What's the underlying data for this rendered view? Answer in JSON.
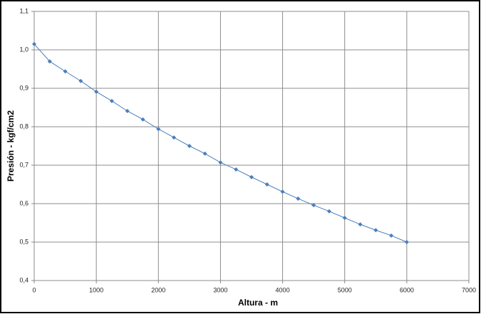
{
  "chart_data": {
    "type": "line",
    "x_label": "Altura - m",
    "y_label": "Presión - kgf/cm2",
    "x": [
      0,
      250,
      500,
      750,
      1000,
      1250,
      1500,
      1750,
      2000,
      2250,
      2500,
      2750,
      3000,
      3250,
      3500,
      3750,
      4000,
      4250,
      4500,
      4750,
      5000,
      5250,
      5500,
      5750,
      6000
    ],
    "series": [
      {
        "color": "#4a7ebb",
        "values": [
          1.015,
          0.97,
          0.944,
          0.919,
          0.891,
          0.867,
          0.841,
          0.819,
          0.794,
          0.772,
          0.75,
          0.73,
          0.707,
          0.689,
          0.669,
          0.65,
          0.631,
          0.613,
          0.596,
          0.58,
          0.563,
          0.546,
          0.531,
          0.517,
          0.5
        ]
      }
    ],
    "xlim": [
      0,
      7000
    ],
    "xticks": [
      0,
      1000,
      2000,
      3000,
      4000,
      5000,
      6000,
      7000
    ],
    "ylim": [
      0.4,
      1.1
    ],
    "yticks": [
      {
        "value": 0.4,
        "label": "0,4"
      },
      {
        "value": 0.5,
        "label": "0,5"
      },
      {
        "value": 0.6,
        "label": "0,6"
      },
      {
        "value": 0.7,
        "label": "0,7"
      },
      {
        "value": 0.8,
        "label": "0,8"
      },
      {
        "value": 0.9,
        "label": "0,9"
      },
      {
        "value": 1.0,
        "label": "1,0"
      },
      {
        "value": 1.1,
        "label": "1,1"
      }
    ],
    "grid": true
  }
}
